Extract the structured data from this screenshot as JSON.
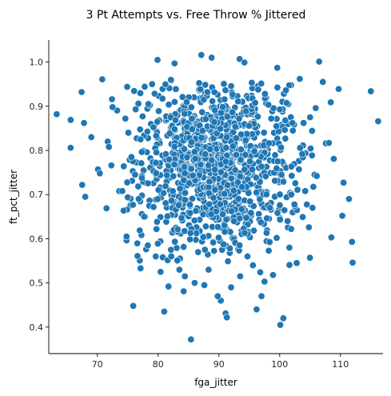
{
  "chart_data": {
    "type": "scatter",
    "title": "3 Pt Attempts vs. Free Throw % Jittered",
    "xlabel": "fga_jitter",
    "ylabel": "ft_pct_jitter",
    "xlim": [
      62,
      117
    ],
    "ylim": [
      0.34,
      1.05
    ],
    "xticks": [
      70,
      80,
      90,
      100,
      110
    ],
    "yticks": [
      0.4,
      0.5,
      0.6,
      0.7,
      0.8,
      0.9,
      1.0
    ],
    "grid": false,
    "color": "#1f77b4",
    "points": [
      [
        63.3,
        0.882
      ],
      [
        65.6,
        0.806
      ],
      [
        65.6,
        0.869
      ],
      [
        67.4,
        0.932
      ],
      [
        67.5,
        0.722
      ],
      [
        67.8,
        0.862
      ],
      [
        68.0,
        0.695
      ],
      [
        69.0,
        0.83
      ],
      [
        70.1,
        0.757
      ],
      [
        70.4,
        0.748
      ],
      [
        70.8,
        0.961
      ],
      [
        71.5,
        0.669
      ],
      [
        71.7,
        0.82
      ],
      [
        71.9,
        0.808
      ],
      [
        72.3,
        0.766
      ],
      [
        72.4,
        0.916
      ],
      [
        72.5,
        0.898
      ],
      [
        73.6,
        0.708
      ],
      [
        74.1,
        0.708
      ],
      [
        74.6,
        0.872
      ],
      [
        74.8,
        0.605
      ],
      [
        74.9,
        0.944
      ],
      [
        75.9,
        0.448
      ],
      [
        76.6,
        0.561
      ],
      [
        77.1,
        0.533
      ],
      [
        81.0,
        0.435
      ],
      [
        79.9,
        1.005
      ],
      [
        81.7,
        0.492
      ],
      [
        82.7,
        0.997
      ],
      [
        84.2,
        0.481
      ],
      [
        85.4,
        0.372
      ],
      [
        87.1,
        1.016
      ],
      [
        88.8,
        1.01
      ],
      [
        90.3,
        0.46
      ],
      [
        91.1,
        0.431
      ],
      [
        91.3,
        0.422
      ],
      [
        93.4,
        1.007
      ],
      [
        94.2,
        0.999
      ],
      [
        96.2,
        0.44
      ],
      [
        99.6,
        0.987
      ],
      [
        100.1,
        0.405
      ],
      [
        100.6,
        0.42
      ],
      [
        102.8,
        0.545
      ],
      [
        103.3,
        0.962
      ],
      [
        105.0,
        0.875
      ],
      [
        106.5,
        1.001
      ],
      [
        107.1,
        0.955
      ],
      [
        107.6,
        0.816
      ],
      [
        108.1,
        0.817
      ],
      [
        108.4,
        0.909
      ],
      [
        108.5,
        0.603
      ],
      [
        108.9,
        0.781
      ],
      [
        109.7,
        0.939
      ],
      [
        110.3,
        0.652
      ],
      [
        110.5,
        0.727
      ],
      [
        111.4,
        0.69
      ],
      [
        111.9,
        0.593
      ],
      [
        112.0,
        0.546
      ],
      [
        115.0,
        0.934
      ],
      [
        116.2,
        0.866
      ],
      [
        104.8,
        0.626
      ],
      [
        105.4,
        0.67
      ],
      [
        106.1,
        0.742
      ],
      [
        103.7,
        0.792
      ],
      [
        104.2,
        0.708
      ],
      [
        102.1,
        0.862
      ],
      [
        101.9,
        0.7
      ],
      [
        101.3,
        0.64
      ],
      [
        101.6,
        0.58
      ],
      [
        100.3,
        0.745
      ],
      [
        99.5,
        0.602
      ],
      [
        98.9,
        0.518
      ],
      [
        98.2,
        0.573
      ],
      [
        97.5,
        0.503
      ],
      [
        96.8,
        0.524
      ],
      [
        78.3,
        0.585
      ],
      [
        77.7,
        0.65
      ],
      [
        76.8,
        0.69
      ],
      [
        76.2,
        0.745
      ],
      [
        75.6,
        0.785
      ],
      [
        75.1,
        0.84
      ],
      [
        76.3,
        0.893
      ],
      [
        77.1,
        0.825
      ],
      [
        78.4,
        0.905
      ],
      [
        79.0,
        0.95
      ],
      [
        79.6,
        0.56
      ],
      [
        80.4,
        0.525
      ],
      [
        82.1,
        0.575
      ],
      [
        83.5,
        0.53
      ],
      [
        84.4,
        0.515
      ],
      [
        86.0,
        0.5
      ],
      [
        87.6,
        0.495
      ],
      [
        88.3,
        0.53
      ],
      [
        89.8,
        0.47
      ],
      [
        92.0,
        0.49
      ],
      [
        93.5,
        0.515
      ],
      [
        94.7,
        0.56
      ],
      [
        95.6,
        0.54
      ],
      [
        97.0,
        0.47
      ],
      [
        98.4,
        0.67
      ]
    ],
    "cluster": {
      "count": 1150,
      "x_center": 89.5,
      "x_sd": 6.4,
      "y_center": 0.77,
      "y_sd": 0.095,
      "x_range": [
        73,
        106
      ],
      "y_range": [
        0.54,
        0.96
      ]
    }
  }
}
